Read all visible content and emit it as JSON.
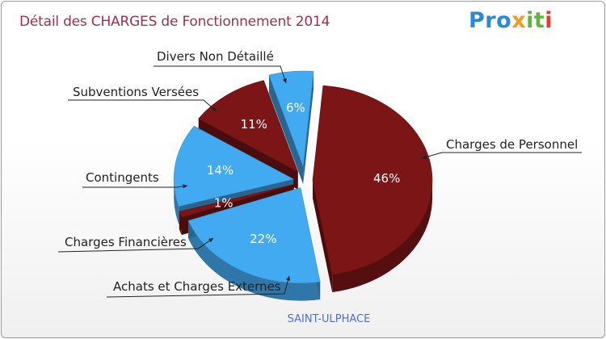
{
  "header": {
    "title": "Détail des CHARGES de Fonctionnement 2014",
    "logo_letters": [
      "P",
      "r",
      "o",
      "x",
      "i",
      "t",
      "i"
    ]
  },
  "colors": {
    "title": "#a0304a",
    "dark_red": "#7b1516",
    "blue": "#42aaf0",
    "subtitle": "#4f6fd6",
    "logo": [
      "#2a8ad9",
      "#2a8ad9",
      "#2a8ad9",
      "#f39b1c",
      "#5db73d",
      "#5db73d",
      "#e23c31"
    ]
  },
  "chart_data": {
    "type": "pie",
    "title": "Détail des CHARGES de Fonctionnement 2014",
    "subtitle": "SAINT-ULPHACE",
    "slices": [
      {
        "label": "Charges de Personnel",
        "percent": 46,
        "value_label": "46%",
        "color": "#7b1516"
      },
      {
        "label": "Achats et Charges Externes",
        "percent": 22,
        "value_label": "22%",
        "color": "#42aaf0"
      },
      {
        "label": "Charges Financières",
        "percent": 1,
        "value_label": "1%",
        "color": "#7b1516"
      },
      {
        "label": "Contingents",
        "percent": 14,
        "value_label": "14%",
        "color": "#42aaf0"
      },
      {
        "label": "Subventions Versées",
        "percent": 11,
        "value_label": "11%",
        "color": "#7b1516"
      },
      {
        "label": "Divers Non Détaillé",
        "percent": 6,
        "value_label": "6%",
        "color": "#42aaf0"
      }
    ]
  }
}
